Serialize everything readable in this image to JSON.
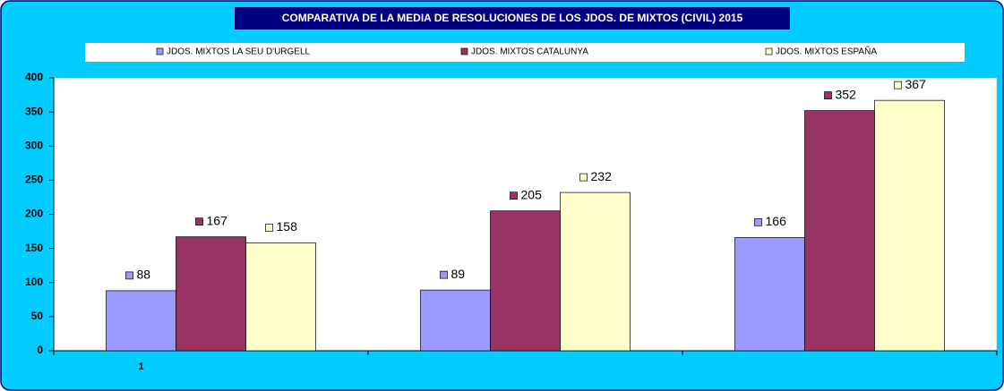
{
  "chart_data": {
    "type": "bar",
    "title": "COMPARATIVA DE LA MEDIA DE RESOLUCIONES DE LOS JDOS. DE MIXTOS (CIVIL)  2015",
    "categories": [
      "1",
      null,
      null
    ],
    "series": [
      {
        "name": "JDOS. MIXTOS LA SEU D'URGELL",
        "color": "#9999ff",
        "values": [
          88,
          89,
          166
        ]
      },
      {
        "name": "JDOS. MIXTOS CATALUNYA",
        "color": "#993366",
        "values": [
          167,
          205,
          352
        ]
      },
      {
        "name": "JDOS. MIXTOS ESPAÑA",
        "color": "#ffffcc",
        "values": [
          158,
          232,
          367
        ]
      }
    ],
    "ylim": [
      0,
      400
    ],
    "yticks": [
      0,
      50,
      100,
      150,
      200,
      250,
      300,
      350,
      400
    ],
    "grid": false,
    "legend": "top"
  }
}
